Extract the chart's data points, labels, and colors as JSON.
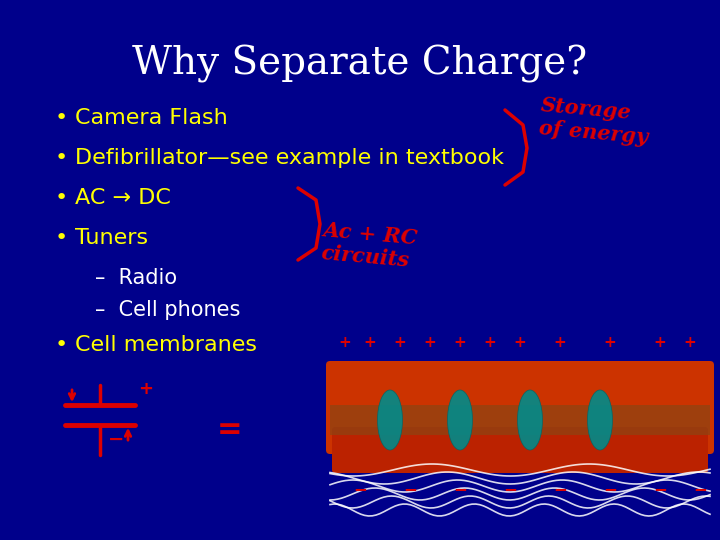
{
  "bg_color": "#00008B",
  "title": "Why Separate Charge?",
  "title_color": "#ffffff",
  "title_fontsize": 28,
  "bullet_color": "#ffff00",
  "bullet_fontsize": 16,
  "sub_bullet_color": "#ffffff",
  "sub_bullet_fontsize": 15,
  "last_bullet_color": "#ffff00",
  "bullets": [
    "Camera Flash",
    "Defibrillator—see example in textbook",
    "AC → DC",
    "Tuners"
  ],
  "sub_bullets": [
    "–  Radio",
    "–  Cell phones"
  ],
  "last_bullet": "Cell membranes",
  "annotation1_text": "Storage\nof energy",
  "annotation1_color": "#dd0000",
  "annotation2_text": "Ac + RC\ncircuits",
  "annotation2_color": "#dd0000",
  "bracket_color": "#dd0000"
}
